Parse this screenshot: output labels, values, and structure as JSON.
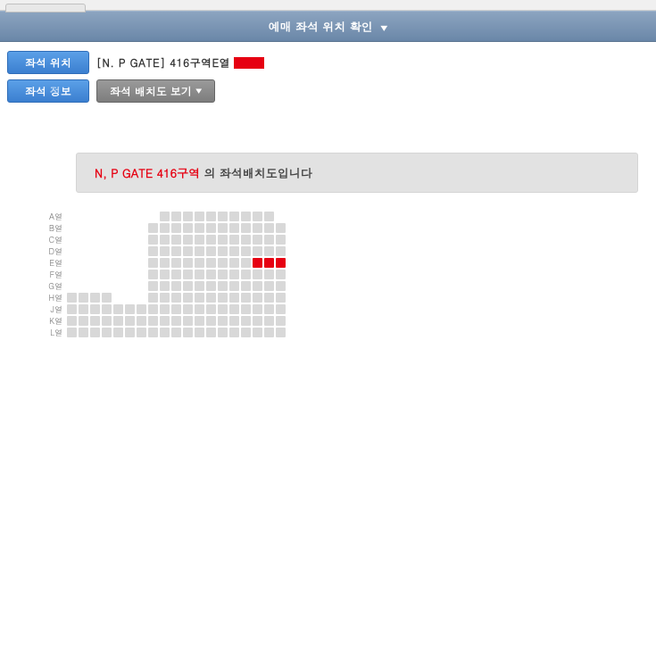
{
  "header": {
    "title": "예매 좌석 위치 확인"
  },
  "buttons": {
    "seat_location": "좌석 위치",
    "seat_info": "좌석 정보",
    "view_layout": "좌석 배치도 보기"
  },
  "location": {
    "text": "[N. P GATE] 416구역E열"
  },
  "banner": {
    "highlight": "N, P GATE 416구역",
    "rest": " 의 좌석배치도입니다"
  },
  "seatmap": {
    "total_cols": 20,
    "rows": [
      {
        "label": "A열",
        "cells": "00000000111111111100"
      },
      {
        "label": "B열",
        "cells": "00000001111111111110"
      },
      {
        "label": "C열",
        "cells": "00000001111111111110"
      },
      {
        "label": "D열",
        "cells": "00000001111111111110"
      },
      {
        "label": "E열",
        "cells": "00000001111111112220"
      },
      {
        "label": "F열",
        "cells": "00000001111111111110"
      },
      {
        "label": "G열",
        "cells": "00000001111111111110"
      },
      {
        "label": "H열",
        "cells": "11110001111111111110"
      },
      {
        "label": "J열",
        "cells": "11111111111111111110"
      },
      {
        "label": "K열",
        "cells": "11111111111111111110"
      },
      {
        "label": "L열",
        "cells": "11111111111111111110"
      }
    ]
  },
  "colors": {
    "seat_available": "#d8d8d8",
    "seat_selected": "#e60012",
    "banner_bg": "#e2e2e2",
    "header_grad_top": "#8ca4c0",
    "header_grad_bot": "#6a87a8"
  }
}
